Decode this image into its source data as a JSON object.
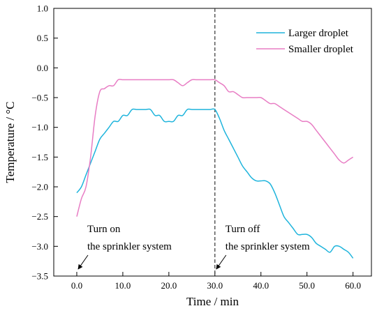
{
  "chart_data": {
    "type": "line",
    "xlabel": "Time / min",
    "ylabel": "Temperature / °C",
    "xlim": [
      -5,
      64
    ],
    "ylim": [
      -3.5,
      1.0
    ],
    "xticks": [
      0,
      10,
      20,
      30,
      40,
      50,
      60
    ],
    "xtick_labels": [
      "0.0",
      "10.0",
      "20.0",
      "30.0",
      "40.0",
      "50.0",
      "60.0"
    ],
    "yticks": [
      1.0,
      0.5,
      0.0,
      -0.5,
      -1.0,
      -1.5,
      -2.0,
      -2.5,
      -3.0,
      -3.5
    ],
    "ytick_labels": [
      "1.0",
      "0.5",
      "0.0",
      "−0.5",
      "−1.0",
      "−1.5",
      "−2.0",
      "−2.5",
      "−3.0",
      "−3.5"
    ],
    "grid": false,
    "legend_position": "top-right",
    "vline_x": 30,
    "series": [
      {
        "name": "Larger droplet",
        "color": "#1eb4dc",
        "x": [
          0,
          1,
          2,
          3,
          4,
          5,
          6,
          7,
          8,
          9,
          10,
          11,
          12,
          13,
          14,
          15,
          16,
          17,
          18,
          19,
          20,
          21,
          22,
          23,
          24,
          25,
          26,
          27,
          28,
          29,
          30,
          31,
          32,
          33,
          34,
          35,
          36,
          37,
          38,
          39,
          40,
          41,
          42,
          43,
          44,
          45,
          46,
          47,
          48,
          49,
          50,
          51,
          52,
          53,
          54,
          55,
          56,
          57,
          58,
          59,
          60
        ],
        "values": [
          -2.1,
          -2.0,
          -1.8,
          -1.6,
          -1.4,
          -1.2,
          -1.1,
          -1.0,
          -0.9,
          -0.9,
          -0.8,
          -0.8,
          -0.7,
          -0.7,
          -0.7,
          -0.7,
          -0.7,
          -0.8,
          -0.8,
          -0.9,
          -0.9,
          -0.9,
          -0.8,
          -0.8,
          -0.7,
          -0.7,
          -0.7,
          -0.7,
          -0.7,
          -0.7,
          -0.7,
          -0.85,
          -1.05,
          -1.2,
          -1.35,
          -1.5,
          -1.65,
          -1.75,
          -1.85,
          -1.9,
          -1.9,
          -1.9,
          -1.95,
          -2.1,
          -2.3,
          -2.5,
          -2.6,
          -2.7,
          -2.8,
          -2.8,
          -2.8,
          -2.85,
          -2.95,
          -3.0,
          -3.05,
          -3.1,
          -3.0,
          -3.0,
          -3.05,
          -3.1,
          -3.2
        ]
      },
      {
        "name": "Smaller droplet",
        "color": "#e87dc4",
        "x": [
          0,
          1,
          2,
          3,
          4,
          5,
          6,
          7,
          8,
          9,
          10,
          11,
          12,
          13,
          14,
          15,
          16,
          17,
          18,
          19,
          20,
          21,
          22,
          23,
          24,
          25,
          26,
          27,
          28,
          29,
          30,
          31,
          32,
          33,
          34,
          35,
          36,
          37,
          38,
          39,
          40,
          41,
          42,
          43,
          44,
          45,
          46,
          47,
          48,
          49,
          50,
          51,
          52,
          53,
          54,
          55,
          56,
          57,
          58,
          59,
          60
        ],
        "values": [
          -2.5,
          -2.2,
          -2.0,
          -1.5,
          -0.8,
          -0.4,
          -0.35,
          -0.3,
          -0.3,
          -0.2,
          -0.2,
          -0.2,
          -0.2,
          -0.2,
          -0.2,
          -0.2,
          -0.2,
          -0.2,
          -0.2,
          -0.2,
          -0.2,
          -0.2,
          -0.25,
          -0.3,
          -0.25,
          -0.2,
          -0.2,
          -0.2,
          -0.2,
          -0.2,
          -0.2,
          -0.25,
          -0.3,
          -0.4,
          -0.4,
          -0.45,
          -0.5,
          -0.5,
          -0.5,
          -0.5,
          -0.5,
          -0.55,
          -0.6,
          -0.6,
          -0.65,
          -0.7,
          -0.75,
          -0.8,
          -0.85,
          -0.9,
          -0.9,
          -0.95,
          -1.05,
          -1.15,
          -1.25,
          -1.35,
          -1.45,
          -1.55,
          -1.6,
          -1.55,
          -1.5
        ]
      }
    ],
    "annotations": [
      {
        "lines": [
          "Turn on",
          "the sprinkler system"
        ],
        "arrow_to_x": 0
      },
      {
        "lines": [
          "Turn off",
          "the sprinkler system"
        ],
        "arrow_to_x": 30
      }
    ]
  }
}
